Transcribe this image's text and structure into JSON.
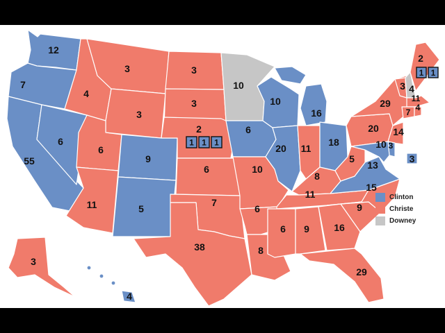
{
  "colors": {
    "clinton": "#6a8fc6",
    "christe": "#f07b6b",
    "downey": "#c6c6c6",
    "border": "#ffffff",
    "background": "#000000"
  },
  "legend": [
    {
      "label": "Clinton",
      "color": "#6a8fc6"
    },
    {
      "label": "Christe",
      "color": "#f07b6b"
    },
    {
      "label": "Downey",
      "color": "#c6c6c6"
    }
  ],
  "states": {
    "WA": {
      "ev": "12",
      "winner": "clinton"
    },
    "OR": {
      "ev": "7",
      "winner": "clinton"
    },
    "CA": {
      "ev": "55",
      "winner": "clinton"
    },
    "NV": {
      "ev": "6",
      "winner": "clinton"
    },
    "ID": {
      "ev": "4",
      "winner": "christe"
    },
    "MT": {
      "ev": "3",
      "winner": "christe"
    },
    "WY": {
      "ev": "3",
      "winner": "christe"
    },
    "UT": {
      "ev": "6",
      "winner": "christe"
    },
    "AZ": {
      "ev": "11",
      "winner": "christe"
    },
    "CO": {
      "ev": "9",
      "winner": "clinton"
    },
    "NM": {
      "ev": "5",
      "winner": "clinton"
    },
    "ND": {
      "ev": "3",
      "winner": "christe"
    },
    "SD": {
      "ev": "3",
      "winner": "christe"
    },
    "NE": {
      "ev": "2",
      "winner": "christe"
    },
    "NE_D1": {
      "ev": "1",
      "winner": "clinton"
    },
    "NE_D2": {
      "ev": "1",
      "winner": "clinton"
    },
    "NE_D3": {
      "ev": "1",
      "winner": "clinton"
    },
    "KS": {
      "ev": "6",
      "winner": "christe"
    },
    "OK": {
      "ev": "7",
      "winner": "christe"
    },
    "TX": {
      "ev": "38",
      "winner": "christe"
    },
    "MN": {
      "ev": "10",
      "winner": "downey"
    },
    "IA": {
      "ev": "6",
      "winner": "clinton"
    },
    "MO": {
      "ev": "10",
      "winner": "christe"
    },
    "AR": {
      "ev": "6",
      "winner": "christe"
    },
    "LA": {
      "ev": "8",
      "winner": "christe"
    },
    "WI": {
      "ev": "10",
      "winner": "clinton"
    },
    "IL": {
      "ev": "20",
      "winner": "clinton"
    },
    "MI": {
      "ev": "16",
      "winner": "clinton"
    },
    "IN": {
      "ev": "11",
      "winner": "christe"
    },
    "OH": {
      "ev": "18",
      "winner": "clinton"
    },
    "KY": {
      "ev": "8",
      "winner": "christe"
    },
    "TN": {
      "ev": "11",
      "winner": "christe"
    },
    "MS": {
      "ev": "6",
      "winner": "christe"
    },
    "AL": {
      "ev": "9",
      "winner": "christe"
    },
    "GA": {
      "ev": "16",
      "winner": "christe"
    },
    "FL": {
      "ev": "29",
      "winner": "christe"
    },
    "SC": {
      "ev": "9",
      "winner": "christe"
    },
    "NC": {
      "ev": "15",
      "winner": "christe"
    },
    "VA": {
      "ev": "13",
      "winner": "clinton"
    },
    "WV": {
      "ev": "5",
      "winner": "christe"
    },
    "PA": {
      "ev": "20",
      "winner": "christe"
    },
    "NY": {
      "ev": "29",
      "winner": "christe"
    },
    "VT": {
      "ev": "3",
      "winner": "christe"
    },
    "NH": {
      "ev": "4",
      "winner": "downey"
    },
    "ME": {
      "ev": "2",
      "winner": "christe"
    },
    "ME_D1": {
      "ev": "1",
      "winner": "clinton"
    },
    "ME_D2": {
      "ev": "1",
      "winner": "clinton"
    },
    "MA": {
      "ev": "11",
      "winner": "christe"
    },
    "CT": {
      "ev": "7",
      "winner": "christe"
    },
    "RI": {
      "ev": "4",
      "winner": "christe"
    },
    "NJ": {
      "ev": "14",
      "winner": "christe"
    },
    "MD": {
      "ev": "10",
      "winner": "clinton"
    },
    "DE": {
      "ev": "3",
      "winner": "clinton"
    },
    "DC": {
      "ev": "3",
      "winner": "clinton"
    },
    "AK": {
      "ev": "3",
      "winner": "christe"
    },
    "HI": {
      "ev": "4",
      "winner": "clinton"
    }
  }
}
